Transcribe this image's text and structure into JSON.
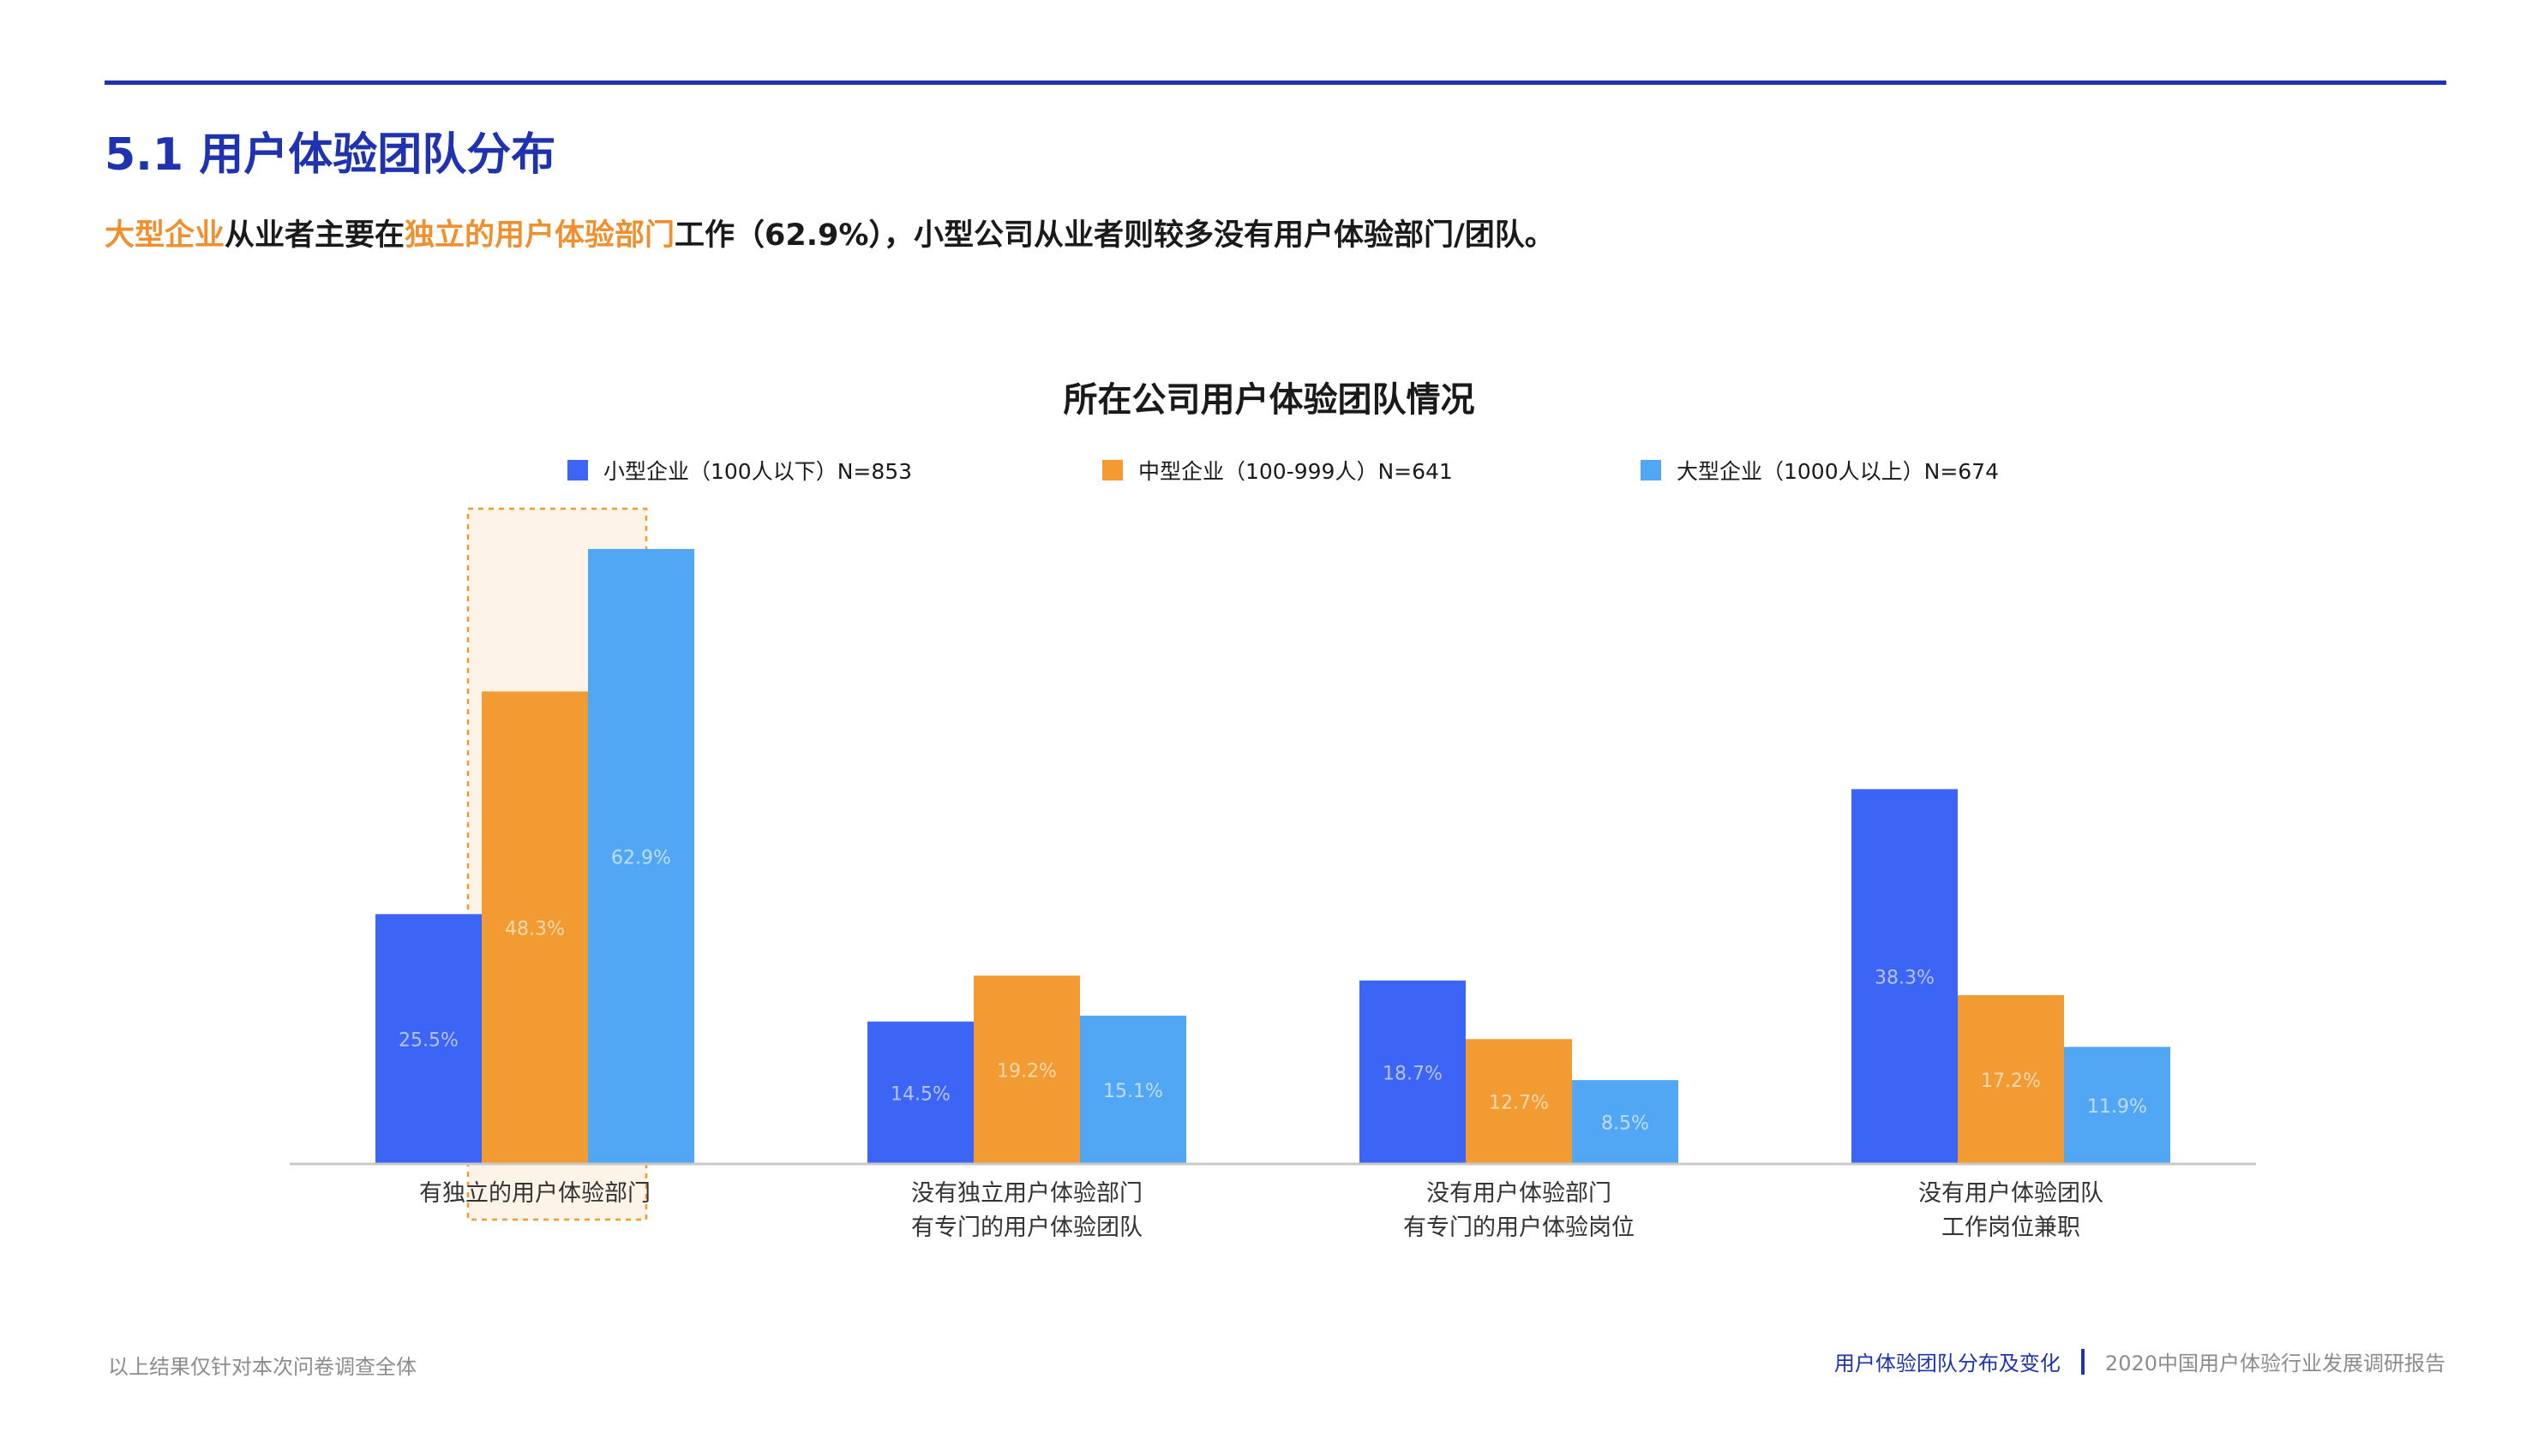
{
  "header": {
    "title": "5.1 用户体验团队分布",
    "subtitle": {
      "hl1": "大型企业",
      "t1": "从业者主要在",
      "hl2": "独立的用户体验部门",
      "t2": "工作（62.9%），小型公司从业者则较多没有用户体验部门/团队。"
    }
  },
  "chart_data": {
    "type": "bar",
    "title": "所在公司用户体验团队情况",
    "categories": [
      [
        "有独立的用户体验部门"
      ],
      [
        "没有独立用户体验部门",
        "有专门的用户体验团队"
      ],
      [
        "没有用户体验部门",
        "有专门的用户体验岗位"
      ],
      [
        "没有用户体验团队",
        "工作岗位兼职"
      ]
    ],
    "series": [
      {
        "name": "小型企业（100人以下）N=853",
        "color": "#3c64f5",
        "values": [
          25.5,
          14.5,
          18.7,
          38.3
        ],
        "labels": [
          "25.5%",
          "14.5%",
          "18.7%",
          "38.3%"
        ]
      },
      {
        "name": "中型企业（100-999人）N=641",
        "color": "#f29b32",
        "values": [
          48.3,
          19.2,
          12.7,
          17.2
        ],
        "labels": [
          "48.3%",
          "19.2%",
          "12.7%",
          "17.2%"
        ]
      },
      {
        "name": "大型企业（1000人以上）N=674",
        "color": "#52a7f5",
        "values": [
          62.9,
          15.1,
          8.5,
          11.9
        ],
        "labels": [
          "62.9%",
          "15.1%",
          "8.5%",
          "11.9%"
        ]
      }
    ],
    "ylim": [
      0,
      70
    ],
    "legend_position": "top",
    "grid": false,
    "highlight_category": 0
  },
  "footer": {
    "note": "以上结果仅针对本次问卷调查全体",
    "section": "用户体验团队分布及变化",
    "report": "2020中国用户体验行业发展调研报告"
  }
}
